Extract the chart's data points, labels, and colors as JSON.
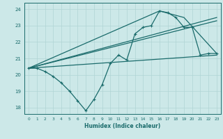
{
  "xlabel": "Humidex (Indice chaleur)",
  "bg_color": "#cce8e8",
  "line_color": "#1a6b6b",
  "grid_color": "#b0d4d4",
  "xlim": [
    -0.5,
    23.5
  ],
  "ylim": [
    17.6,
    24.4
  ],
  "xticks": [
    0,
    1,
    2,
    3,
    4,
    5,
    6,
    7,
    8,
    9,
    10,
    11,
    12,
    13,
    14,
    15,
    16,
    17,
    18,
    19,
    20,
    21,
    22,
    23
  ],
  "yticks": [
    18,
    19,
    20,
    21,
    22,
    23,
    24
  ],
  "zigzag_x": [
    0,
    1,
    2,
    3,
    4,
    5,
    6,
    7,
    8,
    9,
    10,
    11,
    12,
    13,
    14,
    15,
    16,
    17,
    18,
    19,
    20,
    21,
    22,
    23
  ],
  "zigzag_y": [
    20.4,
    20.4,
    20.2,
    19.9,
    19.5,
    19.0,
    18.4,
    17.8,
    18.5,
    19.4,
    20.7,
    21.2,
    20.9,
    22.5,
    22.9,
    23.0,
    23.9,
    23.8,
    23.5,
    22.9,
    22.9,
    21.2,
    21.3,
    21.3
  ],
  "upper_line_x": [
    0,
    16,
    19,
    23
  ],
  "upper_line_y": [
    20.4,
    23.9,
    23.5,
    21.3
  ],
  "mid_line_x": [
    0,
    23
  ],
  "mid_line_y": [
    20.4,
    23.3
  ],
  "lower_line_x": [
    0,
    23
  ],
  "lower_line_y": [
    20.4,
    21.2
  ]
}
